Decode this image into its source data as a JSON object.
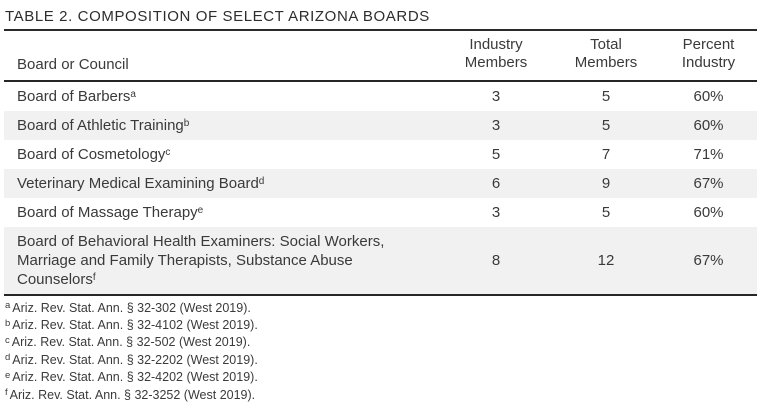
{
  "title": "TABLE 2. COMPOSITION OF SELECT ARIZONA BOARDS",
  "table": {
    "headers": {
      "board": "Board or Council",
      "industry": "Industry Members",
      "total": "Total Members",
      "percent": "Percent Industry"
    },
    "rows": [
      {
        "name": "Board of Barbers",
        "sup": "a",
        "industry": "3",
        "total": "5",
        "percent": "60%"
      },
      {
        "name": "Board of Athletic Training",
        "sup": "b",
        "industry": "3",
        "total": "5",
        "percent": "60%"
      },
      {
        "name": "Board of Cosmetology",
        "sup": "c",
        "industry": "5",
        "total": "7",
        "percent": "71%"
      },
      {
        "name": "Veterinary Medical Examining Board",
        "sup": "d",
        "industry": "6",
        "total": "9",
        "percent": "67%"
      },
      {
        "name": "Board of Massage Therapy",
        "sup": "e",
        "industry": "3",
        "total": "5",
        "percent": "60%"
      },
      {
        "name": "Board of Behavioral Health Examiners: Social Workers, Marriage and Family Therapists, Substance Abuse Counselors",
        "sup": "f",
        "industry": "8",
        "total": "12",
        "percent": "67%"
      }
    ]
  },
  "footnotes": [
    {
      "mark": "a",
      "text": "Ariz. Rev. Stat. Ann. § 32-302 (West 2019)."
    },
    {
      "mark": "b",
      "text": "Ariz. Rev. Stat. Ann. § 32-4102 (West 2019)."
    },
    {
      "mark": "c",
      "text": "Ariz. Rev. Stat. Ann. § 32-502 (West 2019)."
    },
    {
      "mark": "d",
      "text": "Ariz. Rev. Stat. Ann. § 32-2202 (West 2019)."
    },
    {
      "mark": "e",
      "text": "Ariz. Rev. Stat. Ann. § 32-4202 (West 2019)."
    },
    {
      "mark": "f",
      "text": "Ariz. Rev. Stat. Ann. § 32-3252 (West 2019)."
    }
  ],
  "colors": {
    "row_stripe": "#f1f1f1",
    "rule_dark": "#262626",
    "rule_light": "#cfcfcf",
    "text": "#3a3a3a"
  },
  "chart_data": {
    "type": "table",
    "title": "TABLE 2. COMPOSITION OF SELECT ARIZONA BOARDS",
    "columns": [
      "Board or Council",
      "Industry Members",
      "Total Members",
      "Percent Industry"
    ],
    "rows": [
      [
        "Board of Barbers",
        3,
        5,
        "60%"
      ],
      [
        "Board of Athletic Training",
        3,
        5,
        "60%"
      ],
      [
        "Board of Cosmetology",
        5,
        7,
        "71%"
      ],
      [
        "Veterinary Medical Examining Board",
        6,
        9,
        "67%"
      ],
      [
        "Board of Massage Therapy",
        3,
        5,
        "60%"
      ],
      [
        "Board of Behavioral Health Examiners: Social Workers, Marriage and Family Therapists, Substance Abuse Counselors",
        8,
        12,
        "67%"
      ]
    ]
  }
}
